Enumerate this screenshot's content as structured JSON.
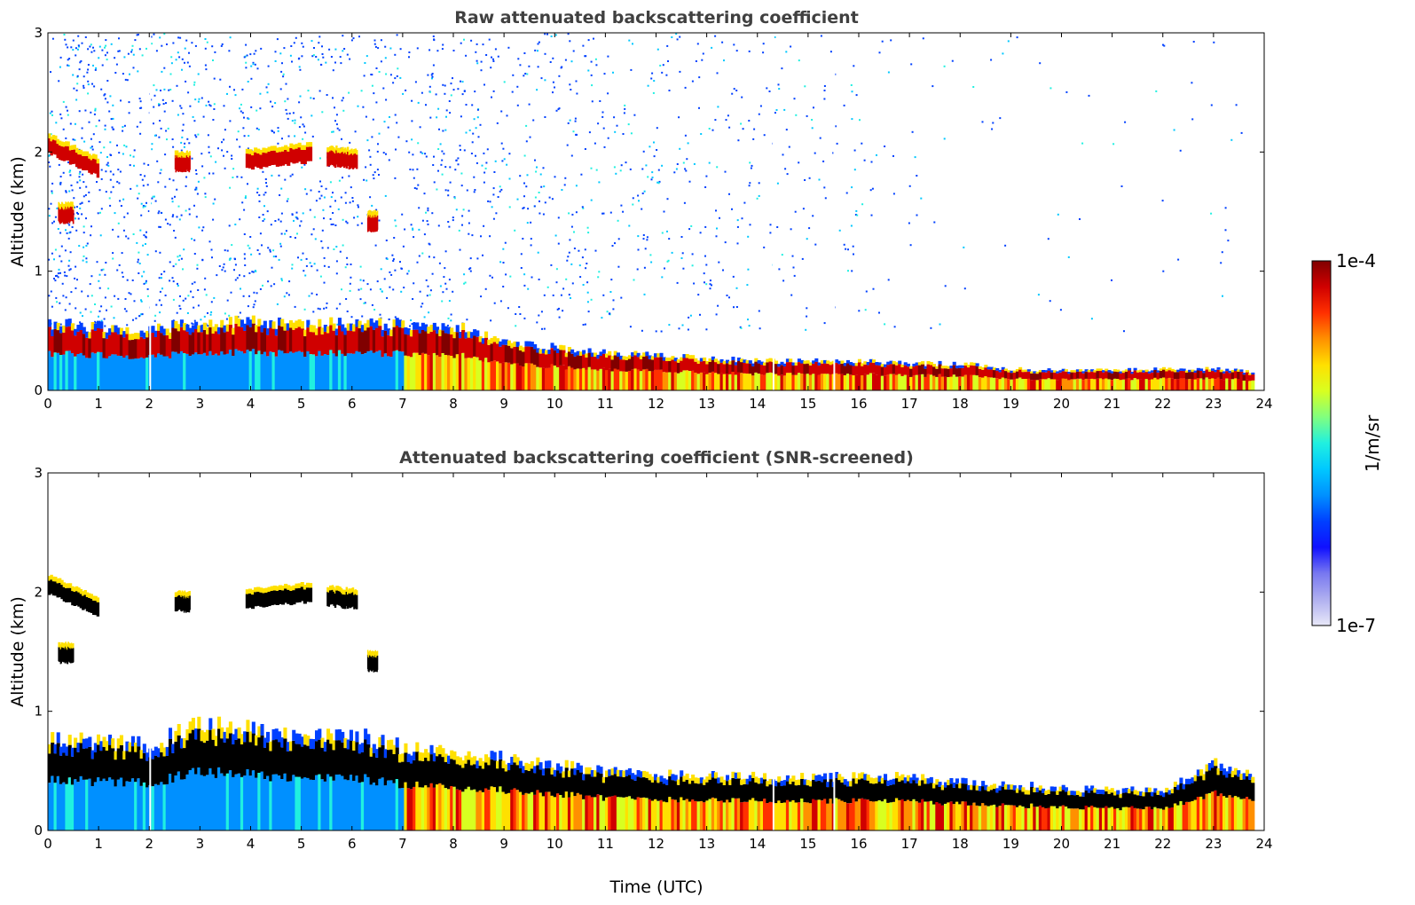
{
  "chart_data": [
    {
      "type": "heatmap",
      "title": "Raw attenuated backscattering coefficient",
      "xlabel": "",
      "ylabel": "Altitude (km)",
      "xlim": [
        0,
        24
      ],
      "ylim": [
        0,
        3
      ],
      "xticks": [
        0,
        1,
        2,
        3,
        4,
        5,
        6,
        7,
        8,
        9,
        10,
        11,
        12,
        13,
        14,
        15,
        16,
        17,
        18,
        19,
        20,
        21,
        22,
        23,
        24
      ],
      "yticks": [
        0,
        1,
        2,
        3
      ],
      "layers": [
        {
          "feature": "boundary layer aerosol top (km)",
          "time": [
            0,
            1,
            2,
            3,
            4,
            5,
            6,
            7,
            8,
            9,
            10,
            11,
            12,
            13,
            14,
            15,
            16,
            17,
            18,
            19,
            20,
            21,
            22,
            23,
            23.8
          ],
          "altitude": [
            0.5,
            0.48,
            0.46,
            0.5,
            0.52,
            0.5,
            0.5,
            0.5,
            0.48,
            0.38,
            0.32,
            0.28,
            0.26,
            0.24,
            0.22,
            0.22,
            0.22,
            0.2,
            0.2,
            0.16,
            0.15,
            0.15,
            0.16,
            0.16,
            0.14
          ]
        },
        {
          "feature": "elevated cloud layer (km)",
          "segments": [
            {
              "time": [
                0,
                1.0
              ],
              "altitude": [
                2.05,
                1.85
              ]
            },
            {
              "time": [
                0.2,
                0.5
              ],
              "altitude": [
                1.47,
                1.47
              ]
            },
            {
              "time": [
                2.5,
                2.8
              ],
              "altitude": [
                1.9,
                1.9
              ]
            },
            {
              "time": [
                3.9,
                5.2
              ],
              "altitude": [
                1.92,
                1.98
              ]
            },
            {
              "time": [
                5.5,
                6.1
              ],
              "altitude": [
                1.95,
                1.92
              ]
            },
            {
              "time": [
                6.3,
                6.5
              ],
              "altitude": [
                1.4,
                1.4
              ]
            }
          ]
        }
      ],
      "gaps_time": [
        2.0,
        14.3,
        15.5
      ]
    },
    {
      "type": "heatmap",
      "title": "Attenuated backscattering coefficient (SNR-screened)",
      "xlabel": "Time (UTC)",
      "ylabel": "Altitude (km)",
      "xlim": [
        0,
        24
      ],
      "ylim": [
        0,
        3
      ],
      "xticks": [
        0,
        1,
        2,
        3,
        4,
        5,
        6,
        7,
        8,
        9,
        10,
        11,
        12,
        13,
        14,
        15,
        16,
        17,
        18,
        19,
        20,
        21,
        22,
        23,
        24
      ],
      "yticks": [
        0,
        1,
        2,
        3
      ],
      "layers": [
        {
          "feature": "boundary layer aerosol top (km)",
          "time": [
            0,
            1,
            2,
            3,
            4,
            5,
            6,
            7,
            8,
            9,
            10,
            11,
            12,
            13,
            14,
            15,
            16,
            17,
            18,
            19,
            20,
            21,
            22,
            23,
            23.8
          ],
          "altitude": [
            0.68,
            0.66,
            0.64,
            0.8,
            0.75,
            0.7,
            0.72,
            0.62,
            0.58,
            0.54,
            0.5,
            0.44,
            0.42,
            0.42,
            0.4,
            0.4,
            0.4,
            0.4,
            0.36,
            0.34,
            0.32,
            0.3,
            0.3,
            0.5,
            0.4
          ]
        },
        {
          "feature": "elevated cloud layer (km)",
          "segments": [
            {
              "time": [
                0,
                1.0
              ],
              "altitude": [
                2.05,
                1.85
              ]
            },
            {
              "time": [
                0.2,
                0.5
              ],
              "altitude": [
                1.47,
                1.47
              ]
            },
            {
              "time": [
                2.5,
                2.8
              ],
              "altitude": [
                1.9,
                1.9
              ]
            },
            {
              "time": [
                3.9,
                5.2
              ],
              "altitude": [
                1.92,
                1.98
              ]
            },
            {
              "time": [
                5.5,
                6.1
              ],
              "altitude": [
                1.95,
                1.92
              ]
            },
            {
              "time": [
                6.3,
                6.5
              ],
              "altitude": [
                1.4,
                1.4
              ]
            }
          ]
        }
      ],
      "gaps_time": [
        2.0,
        14.3,
        15.5
      ]
    }
  ],
  "colorbar": {
    "label": "1/m/sr",
    "max_label": "1e-4",
    "min_label": "1e-7",
    "range": [
      1e-07,
      0.0001
    ],
    "scale": "log",
    "colormap": "jet",
    "colors": [
      "#e8e8f8",
      "#b0b0f0",
      "#7878f0",
      "#1010ff",
      "#0040ff",
      "#0090ff",
      "#00c8ff",
      "#20f0e0",
      "#80ff80",
      "#d8ff20",
      "#ffe000",
      "#ff9000",
      "#ff3000",
      "#d00000",
      "#800000"
    ]
  }
}
